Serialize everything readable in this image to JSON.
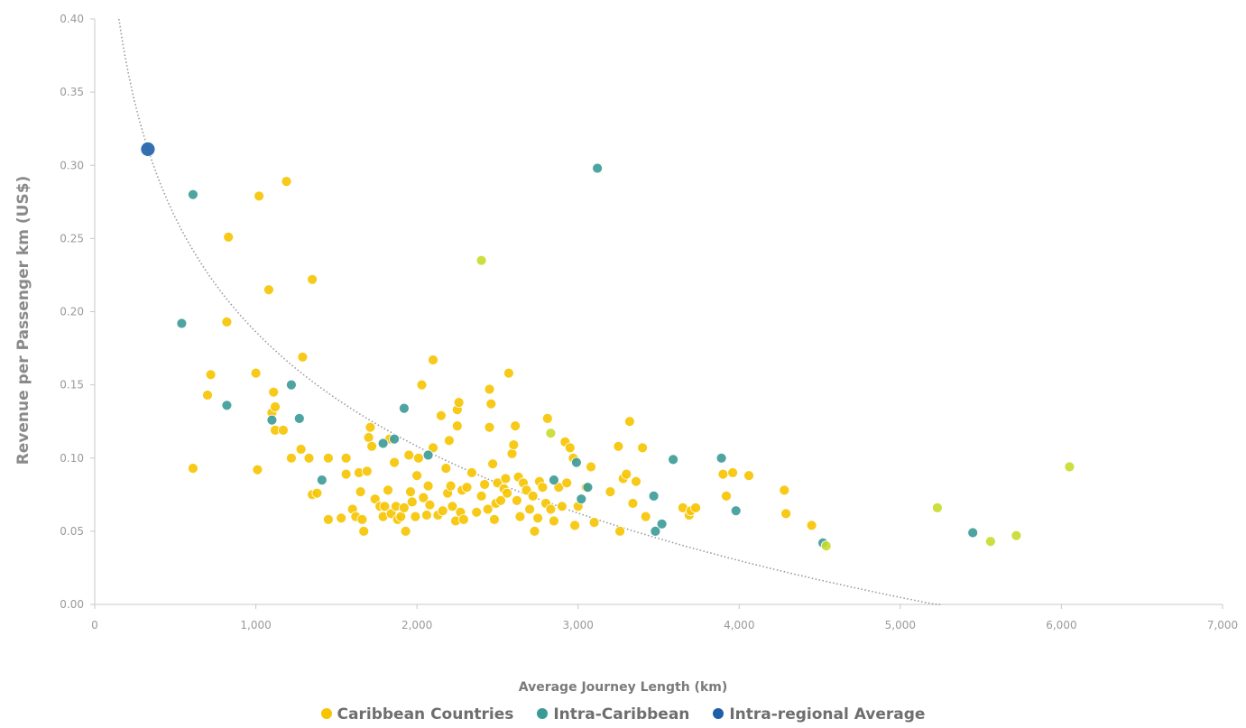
{
  "chart_data": {
    "type": "scatter",
    "xlabel": "Average Journey Length (km)",
    "ylabel": "Revenue per Passenger km (US$)",
    "xlim": [
      0,
      7000
    ],
    "ylim": [
      0,
      0.4
    ],
    "x_ticks": [
      "0",
      "1,000",
      "2,000",
      "3,000",
      "4,000",
      "5,000",
      "6,000",
      "7,000"
    ],
    "y_ticks": [
      "0.00",
      "0.05",
      "0.10",
      "0.15",
      "0.20",
      "0.25",
      "0.30",
      "0.35",
      "0.40"
    ],
    "grid": false,
    "legend_position": "bottom",
    "trendline": {
      "type": "curve",
      "style": "dotted",
      "color": "#9a9a9a"
    },
    "series": [
      {
        "name": "Caribbean Countries",
        "color": "#f6c400",
        "points": [
          [
            1020,
            0.279
          ],
          [
            1190,
            0.289
          ],
          [
            830,
            0.251
          ],
          [
            1080,
            0.215
          ],
          [
            1350,
            0.222
          ],
          [
            820,
            0.193
          ],
          [
            720,
            0.157
          ],
          [
            700,
            0.143
          ],
          [
            1000,
            0.158
          ],
          [
            1110,
            0.145
          ],
          [
            1290,
            0.169
          ],
          [
            610,
            0.093
          ],
          [
            1010,
            0.092
          ],
          [
            1100,
            0.131
          ],
          [
            1120,
            0.135
          ],
          [
            1120,
            0.119
          ],
          [
            1170,
            0.119
          ],
          [
            1220,
            0.1
          ],
          [
            1280,
            0.106
          ],
          [
            1330,
            0.1
          ],
          [
            1350,
            0.075
          ],
          [
            1380,
            0.076
          ],
          [
            1450,
            0.058
          ],
          [
            1450,
            0.1
          ],
          [
            1530,
            0.059
          ],
          [
            1560,
            0.089
          ],
          [
            1560,
            0.1
          ],
          [
            1600,
            0.065
          ],
          [
            1620,
            0.06
          ],
          [
            1640,
            0.09
          ],
          [
            1650,
            0.077
          ],
          [
            1660,
            0.058
          ],
          [
            1670,
            0.05
          ],
          [
            1690,
            0.091
          ],
          [
            1700,
            0.114
          ],
          [
            1710,
            0.121
          ],
          [
            1720,
            0.108
          ],
          [
            1740,
            0.072
          ],
          [
            1770,
            0.067
          ],
          [
            1790,
            0.06
          ],
          [
            1800,
            0.067
          ],
          [
            1820,
            0.078
          ],
          [
            1830,
            0.113
          ],
          [
            1840,
            0.062
          ],
          [
            1860,
            0.097
          ],
          [
            1870,
            0.067
          ],
          [
            1880,
            0.058
          ],
          [
            1900,
            0.06
          ],
          [
            1920,
            0.066
          ],
          [
            1930,
            0.05
          ],
          [
            1950,
            0.102
          ],
          [
            1960,
            0.077
          ],
          [
            1970,
            0.07
          ],
          [
            1990,
            0.06
          ],
          [
            2000,
            0.088
          ],
          [
            2010,
            0.1
          ],
          [
            2030,
            0.15
          ],
          [
            2040,
            0.073
          ],
          [
            2060,
            0.061
          ],
          [
            2070,
            0.081
          ],
          [
            2080,
            0.068
          ],
          [
            2100,
            0.167
          ],
          [
            2100,
            0.107
          ],
          [
            2130,
            0.061
          ],
          [
            2150,
            0.129
          ],
          [
            2160,
            0.064
          ],
          [
            2180,
            0.093
          ],
          [
            2190,
            0.076
          ],
          [
            2200,
            0.112
          ],
          [
            2210,
            0.081
          ],
          [
            2220,
            0.067
          ],
          [
            2240,
            0.057
          ],
          [
            2250,
            0.133
          ],
          [
            2250,
            0.122
          ],
          [
            2260,
            0.138
          ],
          [
            2270,
            0.063
          ],
          [
            2280,
            0.078
          ],
          [
            2290,
            0.058
          ],
          [
            2310,
            0.08
          ],
          [
            2340,
            0.09
          ],
          [
            2370,
            0.063
          ],
          [
            2400,
            0.074
          ],
          [
            2420,
            0.082
          ],
          [
            2440,
            0.065
          ],
          [
            2450,
            0.147
          ],
          [
            2450,
            0.121
          ],
          [
            2460,
            0.137
          ],
          [
            2470,
            0.096
          ],
          [
            2480,
            0.058
          ],
          [
            2490,
            0.069
          ],
          [
            2500,
            0.083
          ],
          [
            2520,
            0.071
          ],
          [
            2540,
            0.079
          ],
          [
            2550,
            0.086
          ],
          [
            2560,
            0.076
          ],
          [
            2570,
            0.158
          ],
          [
            2590,
            0.103
          ],
          [
            2600,
            0.109
          ],
          [
            2610,
            0.122
          ],
          [
            2620,
            0.071
          ],
          [
            2630,
            0.087
          ],
          [
            2640,
            0.06
          ],
          [
            2660,
            0.083
          ],
          [
            2680,
            0.078
          ],
          [
            2700,
            0.065
          ],
          [
            2720,
            0.074
          ],
          [
            2730,
            0.05
          ],
          [
            2750,
            0.059
          ],
          [
            2760,
            0.084
          ],
          [
            2780,
            0.08
          ],
          [
            2800,
            0.069
          ],
          [
            2810,
            0.127
          ],
          [
            2830,
            0.065
          ],
          [
            2850,
            0.057
          ],
          [
            2880,
            0.08
          ],
          [
            2900,
            0.067
          ],
          [
            2920,
            0.111
          ],
          [
            2930,
            0.083
          ],
          [
            2950,
            0.107
          ],
          [
            2970,
            0.1
          ],
          [
            2980,
            0.054
          ],
          [
            3000,
            0.067
          ],
          [
            3050,
            0.08
          ],
          [
            3080,
            0.094
          ],
          [
            3100,
            0.056
          ],
          [
            3200,
            0.077
          ],
          [
            3250,
            0.108
          ],
          [
            3260,
            0.05
          ],
          [
            3280,
            0.086
          ],
          [
            3300,
            0.089
          ],
          [
            3320,
            0.125
          ],
          [
            3340,
            0.069
          ],
          [
            3360,
            0.084
          ],
          [
            3400,
            0.107
          ],
          [
            3420,
            0.06
          ],
          [
            3650,
            0.066
          ],
          [
            3690,
            0.061
          ],
          [
            3700,
            0.064
          ],
          [
            3730,
            0.066
          ],
          [
            3900,
            0.089
          ],
          [
            3920,
            0.074
          ],
          [
            3960,
            0.09
          ],
          [
            4060,
            0.088
          ],
          [
            4280,
            0.078
          ],
          [
            4290,
            0.062
          ],
          [
            4450,
            0.054
          ]
        ]
      },
      {
        "name": "Intra-Caribbean",
        "color": "#3a9a96",
        "points": [
          [
            610,
            0.28
          ],
          [
            540,
            0.192
          ],
          [
            820,
            0.136
          ],
          [
            1220,
            0.15
          ],
          [
            1270,
            0.127
          ],
          [
            1100,
            0.126
          ],
          [
            1920,
            0.134
          ],
          [
            1790,
            0.11
          ],
          [
            1860,
            0.113
          ],
          [
            1410,
            0.085
          ],
          [
            2070,
            0.102
          ],
          [
            2850,
            0.085
          ],
          [
            2990,
            0.097
          ],
          [
            3020,
            0.072
          ],
          [
            3060,
            0.08
          ],
          [
            3120,
            0.298
          ],
          [
            3470,
            0.074
          ],
          [
            3480,
            0.05
          ],
          [
            3520,
            0.055
          ],
          [
            3590,
            0.099
          ],
          [
            3890,
            0.1
          ],
          [
            3980,
            0.064
          ],
          [
            4520,
            0.042
          ],
          [
            5450,
            0.049
          ]
        ]
      },
      {
        "name": "Intra-regional Average",
        "color": "#1d5fa8",
        "points": [
          [
            330,
            0.311
          ]
        ]
      },
      {
        "name": "",
        "color": "#c6dc2a",
        "points": [
          [
            2400,
            0.235
          ],
          [
            2830,
            0.117
          ],
          [
            4540,
            0.04
          ],
          [
            5230,
            0.066
          ],
          [
            5560,
            0.043
          ],
          [
            5720,
            0.047
          ],
          [
            6050,
            0.094
          ]
        ]
      }
    ]
  },
  "legend": {
    "items": [
      {
        "label": "Caribbean Countries",
        "color": "#f6c400"
      },
      {
        "label": "Intra-Caribbean",
        "color": "#3a9a96"
      },
      {
        "label": "Intra-regional Average",
        "color": "#1d5fa8"
      }
    ]
  }
}
